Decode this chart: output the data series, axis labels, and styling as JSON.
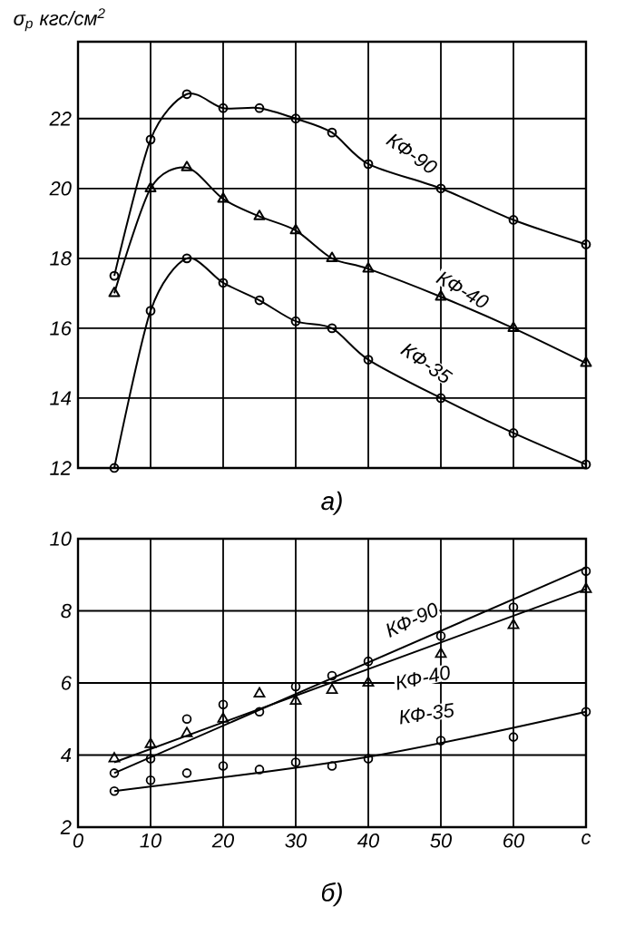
{
  "chart_data": [
    {
      "type": "line",
      "ylabel": "σ$_{р}$ кгс/см$^{2}$",
      "annotations": [
        "а)"
      ],
      "xlim": [
        0,
        70
      ],
      "ylim": [
        12,
        24.2
      ],
      "xticks": [
        0,
        10,
        20,
        30,
        40,
        50,
        60,
        70
      ],
      "yticks": [
        12,
        14,
        16,
        18,
        20,
        22
      ],
      "tick_labels": "y",
      "grid": true,
      "line_style": "solid",
      "series": [
        {
          "name": "КФ-90",
          "color": "#000000",
          "marker": "circle",
          "x": [
            5,
            10,
            15,
            20,
            25,
            30,
            35,
            40,
            50,
            60,
            70
          ],
          "values": [
            17.5,
            21.4,
            22.7,
            22.3,
            22.3,
            22.0,
            21.6,
            20.7,
            20.0,
            19.1,
            18.4
          ]
        },
        {
          "name": "КФ-40",
          "color": "#000000",
          "marker": "triangle",
          "x": [
            5,
            10,
            15,
            20,
            25,
            30,
            35,
            40,
            50,
            60,
            70
          ],
          "values": [
            17.0,
            20.0,
            20.6,
            19.7,
            19.2,
            18.8,
            18.0,
            17.7,
            16.9,
            16.0,
            15.0
          ]
        },
        {
          "name": "КФ-35",
          "color": "#000000",
          "marker": "circle",
          "x": [
            5,
            10,
            15,
            20,
            25,
            30,
            35,
            40,
            50,
            60,
            70
          ],
          "values": [
            12.0,
            16.5,
            18.0,
            17.3,
            16.8,
            16.2,
            16.0,
            15.1,
            14.0,
            13.0,
            12.1
          ]
        }
      ]
    },
    {
      "type": "scatter",
      "annotations": [
        "б)"
      ],
      "xlim": [
        0,
        70
      ],
      "ylim": [
        2,
        10
      ],
      "xticks": [
        0,
        10,
        20,
        30,
        40,
        50,
        60,
        {
          "value": 70,
          "label": "c"
        }
      ],
      "yticks": [
        2,
        4,
        6,
        8,
        10
      ],
      "grid": true,
      "line_style": "solid",
      "series": [
        {
          "name": "КФ-90",
          "color": "#000000",
          "marker": "circle",
          "x": [
            5,
            10,
            15,
            20,
            25,
            30,
            35,
            40,
            50,
            60,
            70
          ],
          "values": [
            3.5,
            3.9,
            5.0,
            5.4,
            5.2,
            5.9,
            6.2,
            6.6,
            7.3,
            8.1,
            9.1
          ]
        },
        {
          "name": "КФ-40",
          "color": "#000000",
          "marker": "triangle",
          "x": [
            5,
            10,
            15,
            20,
            25,
            30,
            35,
            40,
            50,
            60,
            70
          ],
          "values": [
            3.9,
            4.3,
            4.6,
            5.0,
            5.7,
            5.5,
            5.8,
            6.0,
            6.8,
            7.6,
            8.6
          ]
        },
        {
          "name": "КФ-35",
          "color": "#000000",
          "marker": "circle",
          "x": [
            5,
            10,
            15,
            20,
            25,
            30,
            35,
            40,
            50,
            60,
            70
          ],
          "values": [
            3.0,
            3.3,
            3.5,
            3.7,
            3.6,
            3.8,
            3.7,
            3.9,
            4.4,
            4.5,
            5.2
          ]
        },
        {
          "type": "line",
          "color": "#000000",
          "marker": "none",
          "x": [
            5,
            70
          ],
          "values": [
            3.5,
            9.2
          ]
        },
        {
          "type": "line",
          "color": "#000000",
          "marker": "none",
          "x": [
            5,
            70
          ],
          "values": [
            3.8,
            8.6
          ]
        },
        {
          "type": "line",
          "color": "#000000",
          "marker": "none",
          "x": [
            5,
            40,
            70
          ],
          "values": [
            3.0,
            3.95,
            5.2
          ]
        }
      ]
    }
  ]
}
